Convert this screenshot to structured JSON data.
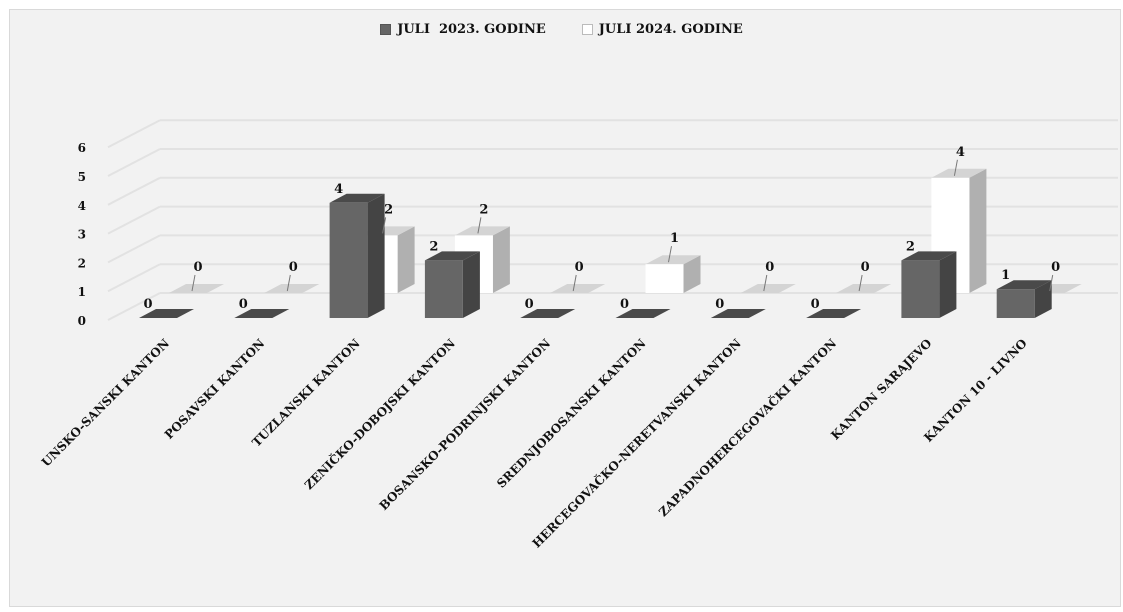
{
  "chart_data": {
    "type": "bar",
    "subtype": "3d-clustered-column",
    "categories": [
      "UNSKO-SANSKI KANTON",
      "POSAVSKI KANTON",
      "TUZLANSKI KANTON",
      "ZENIČKO-DOBOJSKI KANTON",
      "BOSANSKO-PODRINJSKI KANTON",
      "SREDNJOBOSANSKI KANTON",
      "HERCEGOVAČKO-NERETVANSKI KANTON",
      "ZAPADNOHERCEGOVAČKI KANTON",
      "KANTON SARAJEVO",
      "KANTON 10 - LIVNO"
    ],
    "series": [
      {
        "name": "JULI  2023. GODINE",
        "values": [
          0,
          0,
          4,
          2,
          0,
          0,
          0,
          0,
          2,
          1
        ],
        "color": "#666666"
      },
      {
        "name": "JULI 2024. GODINE",
        "values": [
          0,
          0,
          2,
          2,
          0,
          1,
          0,
          0,
          4,
          0
        ],
        "color": "#ffffff"
      }
    ],
    "y_ticks": [
      "0",
      "1",
      "2",
      "3",
      "4",
      "5",
      "6"
    ],
    "ylim": [
      0,
      6
    ],
    "grid": true,
    "legend_position": "top-center",
    "title": "",
    "xlabel": "",
    "ylabel": ""
  }
}
